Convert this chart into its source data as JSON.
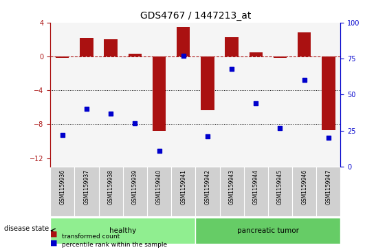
{
  "title": "GDS4767 / 1447213_at",
  "samples": [
    "GSM1159936",
    "GSM1159937",
    "GSM1159938",
    "GSM1159939",
    "GSM1159940",
    "GSM1159941",
    "GSM1159942",
    "GSM1159943",
    "GSM1159944",
    "GSM1159945",
    "GSM1159946",
    "GSM1159947"
  ],
  "transformed_count": [
    -0.15,
    2.2,
    2.0,
    0.3,
    -8.8,
    3.5,
    -6.3,
    2.3,
    0.5,
    -0.15,
    2.8,
    -8.7
  ],
  "percentile_rank": [
    22,
    40,
    37,
    30,
    11,
    77,
    21,
    68,
    44,
    27,
    60,
    20
  ],
  "groups": [
    {
      "label": "healthy",
      "start": 0,
      "end": 6,
      "color": "#90EE90"
    },
    {
      "label": "pancreatic tumor",
      "start": 6,
      "end": 12,
      "color": "#66CC66"
    }
  ],
  "ylim_left": [
    -13,
    4
  ],
  "ylim_right": [
    0,
    100
  ],
  "yticks_left": [
    4,
    0,
    -4,
    -8,
    -12
  ],
  "yticks_right": [
    100,
    75,
    50,
    25,
    0
  ],
  "bar_color": "#AA1111",
  "dot_color": "#0000CC",
  "hline_y": 0,
  "dotted_lines": [
    -4,
    -8
  ],
  "background_color": "#ffffff",
  "disease_state_label": "disease state",
  "legend_items": [
    {
      "label": "transformed count",
      "color": "#AA1111"
    },
    {
      "label": "percentile rank within the sample",
      "color": "#0000CC"
    }
  ]
}
